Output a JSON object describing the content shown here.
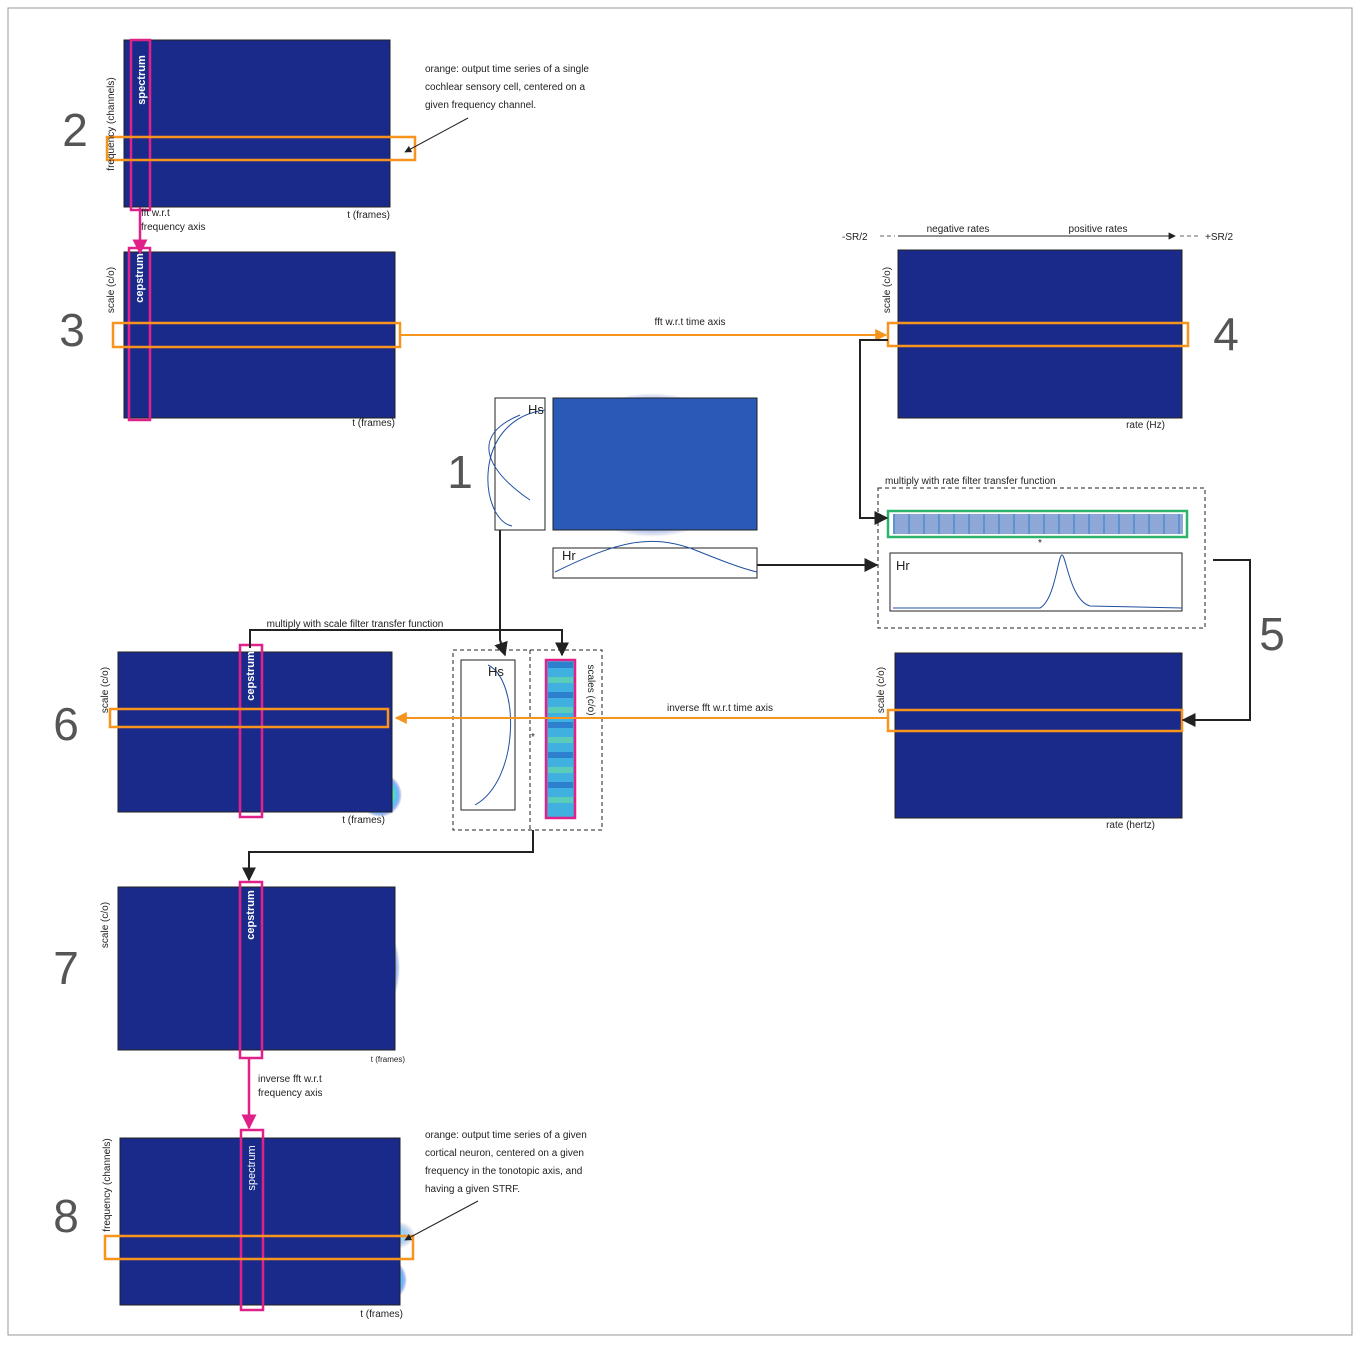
{
  "steps": [
    "1",
    "2",
    "3",
    "4",
    "5",
    "6",
    "7",
    "8"
  ],
  "panel2": {
    "y_label": "frequency (channels)",
    "x_label": "t (frames)",
    "highlight": "spectrum",
    "annotation": [
      "orange: output time series of a single",
      "cochlear sensory cell, centered on a",
      "given frequency channel."
    ]
  },
  "fft_frequency": [
    "fft w.r.t",
    "frequency axis"
  ],
  "panel3": {
    "y_label": "scale (c/o)",
    "x_label": "t (frames)",
    "highlight": "cepstrum"
  },
  "fft_time": "fft w.r.t time axis",
  "panel4": {
    "y_label": "scale (c/o)",
    "x_label": "rate (Hz)",
    "left_limit": "-SR/2",
    "right_limit": "+SR/2",
    "negative": "negative rates",
    "positive": "positive rates"
  },
  "panel1": {
    "scale_filter": "Hs",
    "rate_filter": "Hr"
  },
  "rate_multiply": {
    "title": "multiply with rate filter transfer function",
    "operator": "*",
    "filter": "Hr"
  },
  "panel5": {
    "y_label": "scale (c/o)",
    "x_label": "rate (hertz)"
  },
  "inverse_fft_time": "inverse fft w.r.t time axis",
  "scale_multiply": {
    "title": "multiply with scale  filter transfer function",
    "filter": "Hs",
    "operator": "*",
    "column_label": "scales (c/o)"
  },
  "panel6": {
    "y_label": "scale (c/o)",
    "x_label": "t (frames)",
    "highlight": "cepstrum"
  },
  "panel7": {
    "y_label": "scale (c/o)",
    "x_label": "t (frames)",
    "highlight": "cepstrum"
  },
  "inverse_fft_frequency": [
    "inverse fft w.r.t",
    "frequency axis"
  ],
  "panel8": {
    "y_label": "frequency (channels)",
    "x_label": "t (frames)",
    "highlight": "spectrum",
    "annotation": [
      "orange: output time series of a given",
      "cortical neuron, centered on a  given",
      "frequency in the tonotopic axis, and",
      "having a given STRF."
    ]
  }
}
